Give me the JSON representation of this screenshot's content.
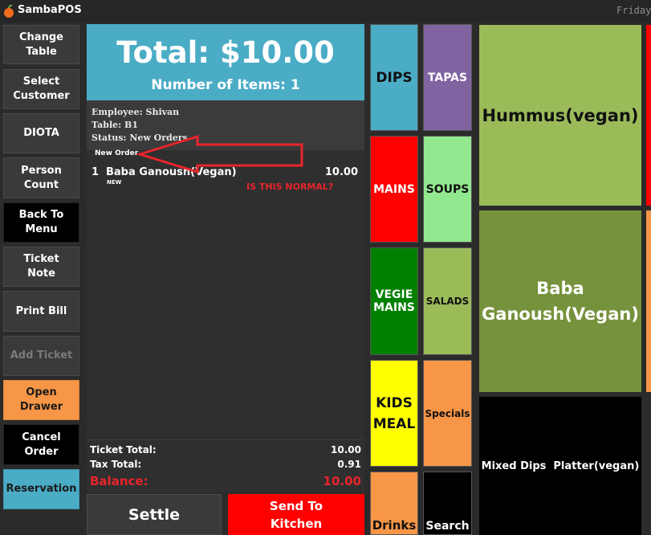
{
  "titlebar": {
    "app_name": "SambaPOS",
    "date": "Friday"
  },
  "left_buttons": [
    "Change\nTable",
    "Select\nCustomer",
    "DIOTA",
    "Person\nCount",
    "Back To\nMenu",
    "Ticket\nNote",
    "Print Bill",
    "Add Ticket",
    "Open\nDrawer",
    "Cancel Order",
    "Reservation"
  ],
  "ticket": {
    "total": "Total: $10.00",
    "items_count": "Number of Items: 1",
    "employee": "Employee: Shivan",
    "table": "Table: B1",
    "status": "Status: New Orders",
    "order_header": "New Order",
    "orders": [
      {
        "qty": "1",
        "name": "Baba Ganoush(Vegan)",
        "price": "10.00",
        "tag": "NEW"
      }
    ],
    "annotation": "IS THIS NORMAL?",
    "ticket_total_label": "Ticket Total:",
    "ticket_total_value": "10.00",
    "tax_total_label": "Tax Total:",
    "tax_total_value": "0.91",
    "balance_label": "Balance:",
    "balance_value": "10.00"
  },
  "actions": {
    "settle": "Settle",
    "send_kitchen": "Send To\nKitchen"
  },
  "categories": {
    "col1": [
      "DIPS",
      "MAINS",
      "VEGIE\nMAINS",
      "KIDS\nMEAL",
      "Drinks"
    ],
    "col2": [
      "TAPAS",
      "SOUPS",
      "SALADS",
      "Specials",
      "Search"
    ]
  },
  "products": [
    "Hummus(vegan)",
    "Baba\nGanoush(Vegan)",
    "Mixed Dips  Platter(vegan)"
  ],
  "colors": {
    "accent_blue": "#4bacc6",
    "send_red": "#ff0000",
    "balance_red": "#e8242b",
    "orange": "#f79646"
  }
}
